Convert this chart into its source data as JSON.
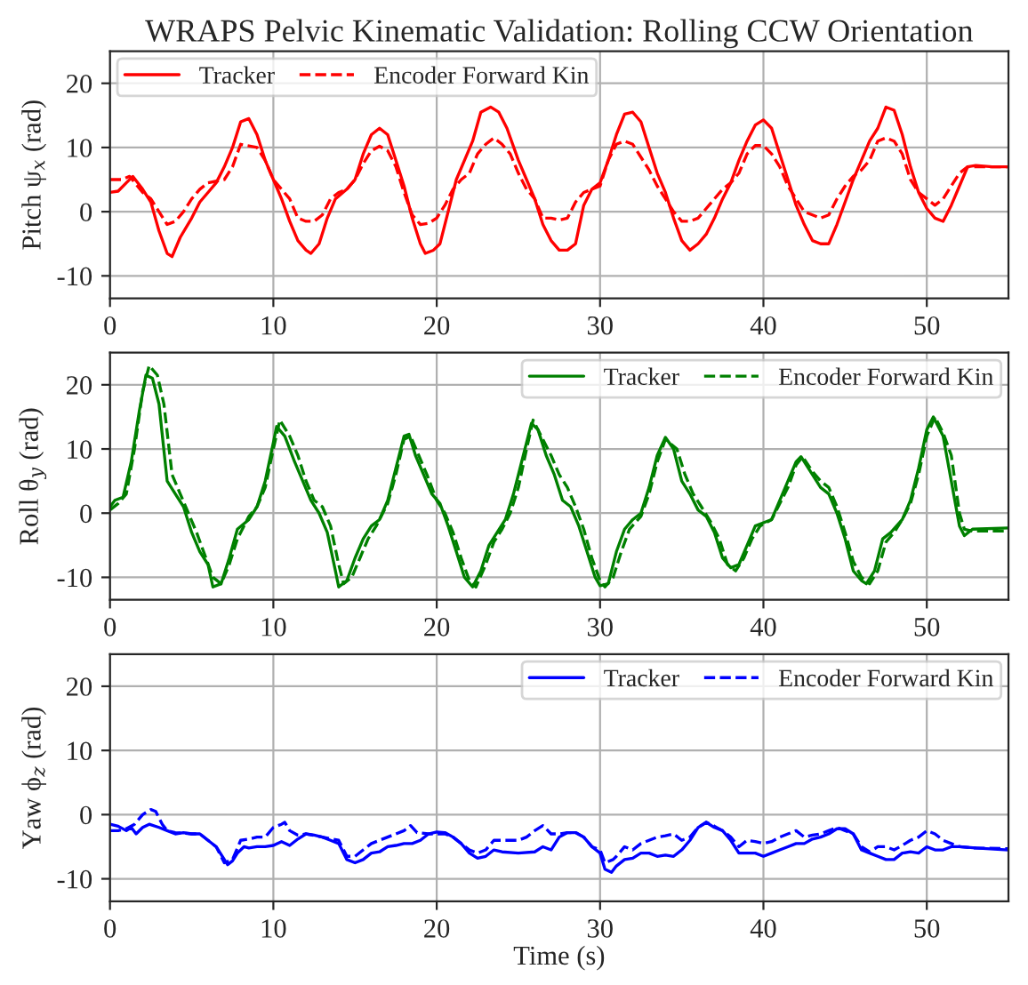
{
  "chart_data": [
    {
      "type": "line",
      "title": "WRAPS Pelvic Kinematic Validation: Rolling CCW Orientation",
      "ylabel": "Pitch ψ$_{x}$ (rad)",
      "xlim": [
        0,
        55
      ],
      "xticks": [
        0,
        10,
        20,
        30,
        40,
        50
      ],
      "ylim": [
        -13.5,
        25
      ],
      "yticks": [
        -10,
        0,
        10,
        20
      ],
      "grid": true,
      "legend": "top left",
      "marker": "none",
      "series": [
        {
          "name": "Tracker",
          "color": "#ff0000",
          "line_style": "solid",
          "x": [
            0,
            0.5,
            1,
            1.4,
            2,
            2.5,
            3,
            3.5,
            3.8,
            4.3,
            5,
            5.5,
            6,
            6.5,
            7,
            7.5,
            8,
            8.5,
            9,
            9.5,
            10,
            10.5,
            11,
            11.5,
            12,
            12.3,
            12.8,
            13.3,
            13.8,
            14.5,
            15,
            15.5,
            16,
            16.5,
            17,
            17.5,
            18,
            18.5,
            19,
            19.3,
            19.8,
            20.2,
            20.7,
            21.2,
            21.7,
            22.2,
            22.7,
            23.3,
            23.8,
            24.3,
            25,
            25.5,
            26,
            26.5,
            27,
            27.5,
            28,
            28.5,
            29,
            29.5,
            30,
            30.5,
            31,
            31.5,
            32,
            32.5,
            33,
            33.5,
            34,
            34.5,
            35,
            35.5,
            36,
            36.5,
            37,
            37.5,
            38,
            38.5,
            39,
            39.5,
            40,
            40.5,
            41,
            41.5,
            42,
            42.5,
            43,
            43.5,
            44,
            44.5,
            45,
            45.5,
            46,
            46.5,
            47,
            47.5,
            48,
            48.5,
            49,
            49.5,
            50,
            50.5,
            51,
            51.5,
            52,
            52.5,
            53,
            54,
            55
          ],
          "values": [
            3,
            3.2,
            4.5,
            5.5,
            3.5,
            1.5,
            -3,
            -6.5,
            -7,
            -4,
            -1,
            1.5,
            3,
            4.5,
            7,
            10,
            14,
            14.5,
            12,
            8,
            5,
            2,
            -1.5,
            -4.5,
            -6,
            -6.5,
            -5,
            -1,
            2,
            3.5,
            5,
            9,
            12,
            13,
            12,
            8,
            4,
            -1,
            -5,
            -6.5,
            -6,
            -5,
            0,
            5,
            8,
            11,
            15.5,
            16.3,
            15.5,
            13,
            8,
            5,
            2,
            -2,
            -4.5,
            -6,
            -6,
            -5,
            1,
            3.5,
            4.5,
            8,
            12,
            15.2,
            15.5,
            14,
            10,
            6,
            3,
            -1,
            -4.5,
            -6,
            -5,
            -3.5,
            -1,
            2,
            4.5,
            8,
            11,
            13.5,
            14.3,
            13,
            9,
            5,
            1,
            -2,
            -4.5,
            -5,
            -5,
            -2,
            1.5,
            5,
            8,
            11,
            13,
            16.3,
            15.8,
            12,
            7,
            3,
            0.5,
            -1,
            -1.5,
            1,
            4,
            7,
            7.2,
            7,
            7
          ]
        },
        {
          "name": "Encoder Forward Kin",
          "color": "#ff0000",
          "line_style": "dashed",
          "x": [
            0,
            0.7,
            1.2,
            2,
            2.5,
            3,
            3.5,
            4,
            4.5,
            5,
            5.5,
            6,
            7,
            7.5,
            8,
            9,
            9.5,
            10,
            10.5,
            11,
            11.5,
            12,
            12.5,
            13,
            13.5,
            14,
            14.5,
            15,
            15.5,
            16,
            16.5,
            17,
            17.5,
            18,
            18.5,
            19,
            19.5,
            20,
            20.5,
            21,
            21.5,
            22,
            22.5,
            23,
            23.5,
            24,
            24.5,
            25,
            25.5,
            26,
            26.5,
            27,
            27.5,
            28,
            28.5,
            29,
            29.5,
            30,
            30.5,
            31,
            31.5,
            32,
            32.5,
            33,
            33.5,
            34,
            34.5,
            35,
            35.5,
            36,
            36.5,
            37,
            37.5,
            38,
            38.5,
            39,
            39.5,
            40,
            40.5,
            41,
            41.5,
            42,
            42.5,
            43,
            43.5,
            44,
            44.5,
            45,
            45.5,
            46,
            46.5,
            47,
            47.5,
            48,
            48.5,
            49,
            49.5,
            50,
            50.5,
            51,
            51.5,
            52,
            52.5,
            55
          ],
          "values": [
            5,
            5,
            5.5,
            3,
            2,
            0,
            -2,
            -1.5,
            0,
            2,
            3.5,
            4.5,
            5,
            7,
            10.5,
            10,
            8,
            5,
            3.5,
            2,
            -1,
            -1.5,
            -1.5,
            -0.5,
            2,
            3,
            3.5,
            5,
            7.5,
            9.5,
            10.2,
            9.5,
            7,
            3,
            -0.5,
            -2,
            -1.8,
            -1,
            1,
            3.5,
            5,
            6,
            9,
            10.5,
            11.5,
            10.5,
            9,
            6,
            3.5,
            2,
            -1,
            -1,
            -1.3,
            -1,
            1.5,
            3,
            3.5,
            4,
            8,
            10.5,
            11,
            10.5,
            8.5,
            6.5,
            4,
            2,
            0,
            -1.5,
            -1.5,
            -1,
            0.5,
            2,
            3.5,
            4.5,
            6,
            9,
            10.3,
            10.3,
            9,
            7,
            4,
            2,
            0,
            -0.5,
            -1,
            -0.5,
            2,
            4,
            5.5,
            6.5,
            8,
            11,
            11.5,
            11,
            9,
            5,
            3,
            2,
            1,
            2,
            4,
            6,
            7,
            7
          ]
        }
      ]
    },
    {
      "type": "line",
      "ylabel": "Roll θ$_{y}$ (rad)",
      "xlim": [
        0,
        55
      ],
      "xticks": [
        0,
        10,
        20,
        30,
        40,
        50
      ],
      "ylim": [
        -13.5,
        25
      ],
      "yticks": [
        -10,
        0,
        10,
        20
      ],
      "grid": true,
      "legend": "top right",
      "marker": "none",
      "series": [
        {
          "name": "Tracker",
          "color": "#008000",
          "line_style": "solid",
          "x": [
            0,
            0.3,
            0.8,
            1.3,
            1.8,
            2.2,
            2.6,
            3,
            3.5,
            4,
            4.5,
            5,
            5.5,
            6,
            6.3,
            6.8,
            7.3,
            7.8,
            8.5,
            9,
            9.5,
            10,
            10.2,
            10.7,
            11.3,
            11.8,
            12.3,
            12.8,
            13.3,
            13.8,
            14,
            14.5,
            15,
            15.5,
            16,
            16.5,
            17,
            17.5,
            18,
            18.3,
            18.7,
            19.2,
            19.7,
            20.2,
            20.7,
            21.2,
            21.7,
            22.2,
            22.7,
            23.2,
            23.7,
            24.2,
            24.7,
            25.3,
            25.8,
            26.2,
            26.7,
            27.2,
            27.7,
            28.2,
            28.7,
            29.2,
            29.7,
            30,
            30.5,
            31,
            31.5,
            32,
            32.5,
            33,
            33.5,
            34,
            34.5,
            35,
            35.5,
            36,
            36.5,
            37,
            37.5,
            38,
            38.5,
            39,
            39.5,
            40,
            40.5,
            41,
            41.5,
            42,
            42.3,
            43,
            43.5,
            44,
            44.5,
            45,
            45.5,
            46,
            46.3,
            46.8,
            47.3,
            47.8,
            48.5,
            49,
            49.5,
            50,
            50.4,
            51,
            51.5,
            52,
            52.3,
            52.8,
            55
          ],
          "values": [
            1,
            2,
            2.5,
            8,
            16,
            21.5,
            21,
            17,
            5,
            3,
            1,
            -3,
            -6,
            -8,
            -11.5,
            -11,
            -7,
            -2.5,
            -1,
            1,
            5,
            11,
            13.5,
            12,
            8,
            5,
            2,
            0,
            -3,
            -9,
            -11.5,
            -10.5,
            -7,
            -4,
            -2,
            -1,
            2,
            7,
            12,
            12.3,
            9,
            6,
            3,
            1.5,
            -2,
            -6,
            -10,
            -11.5,
            -9,
            -5,
            -3,
            -1,
            3,
            9,
            14,
            13,
            9,
            6,
            2,
            1,
            -2,
            -6,
            -10,
            -11.3,
            -11,
            -6,
            -2.5,
            -1,
            0,
            4,
            9,
            11.8,
            10,
            5,
            3,
            0.5,
            -0.5,
            -3,
            -7,
            -8.5,
            -8,
            -5,
            -2,
            -1.5,
            -1,
            2,
            5,
            8,
            8.8,
            6,
            4,
            3,
            0,
            -4,
            -9,
            -10.5,
            -11,
            -9,
            -4,
            -3,
            -1,
            2,
            7,
            13,
            15,
            12,
            5,
            -2,
            -3.5,
            -2.5,
            -2.3
          ]
        },
        {
          "name": "Encoder Forward Kin",
          "color": "#008000",
          "line_style": "dashed",
          "x": [
            0,
            0.5,
            1,
            1.5,
            2,
            2.4,
            2.9,
            3.3,
            3.8,
            4.3,
            4.8,
            5.3,
            5.8,
            6.3,
            6.8,
            7.3,
            7.8,
            8.5,
            9,
            9.5,
            10,
            10.4,
            11,
            11.5,
            12,
            12.5,
            13,
            13.5,
            14,
            14.3,
            14.8,
            15.3,
            15.8,
            16.3,
            17,
            17.5,
            18,
            18.4,
            18.9,
            19.4,
            20,
            20.5,
            21,
            21.5,
            22,
            22.4,
            23,
            23.5,
            24,
            24.5,
            25,
            25.5,
            25.9,
            26.4,
            27,
            27.5,
            28,
            28.5,
            29,
            29.5,
            30,
            30.3,
            30.8,
            31.3,
            31.8,
            32.5,
            33,
            33.5,
            34,
            34.7,
            35.2,
            35.7,
            36.2,
            36.8,
            37.3,
            37.8,
            38.3,
            38.8,
            39.3,
            39.8,
            40.5,
            41,
            41.5,
            42,
            42.4,
            43,
            43.5,
            44,
            44.5,
            45,
            45.5,
            46,
            46.5,
            47,
            47.5,
            48,
            48.5,
            49,
            49.5,
            50,
            50.5,
            51,
            51.5,
            52,
            52.3,
            52.8,
            55
          ],
          "values": [
            0.5,
            1.5,
            3,
            10,
            19,
            23,
            21.5,
            17,
            6,
            3,
            0,
            -3,
            -6.5,
            -10,
            -11,
            -8,
            -4,
            -0.5,
            1,
            4,
            10,
            14.5,
            12,
            9,
            5,
            2,
            1,
            -2,
            -8,
            -11,
            -10,
            -7,
            -4,
            -2,
            1.5,
            6,
            11.5,
            12,
            9,
            6,
            2,
            0,
            -3,
            -7,
            -10.5,
            -11.5,
            -8,
            -4.5,
            -2.5,
            0,
            4,
            10,
            14.5,
            12,
            9,
            6,
            4,
            1,
            -2.5,
            -7,
            -10.5,
            -11.5,
            -10,
            -6,
            -2.5,
            -0.5,
            3,
            8,
            11.5,
            10,
            6,
            3,
            1,
            -1.5,
            -4,
            -8,
            -9,
            -7,
            -4,
            -2,
            -1,
            1.5,
            4,
            7.5,
            8.8,
            6.5,
            5,
            4,
            1,
            -3,
            -7.5,
            -10,
            -11,
            -9,
            -4.5,
            -3,
            -1,
            1.5,
            6,
            12,
            15,
            12.5,
            9,
            0,
            -2.5,
            -2.8,
            -2.8
          ]
        }
      ]
    },
    {
      "type": "line",
      "ylabel": "Yaw ϕ$_{z}$ (rad)",
      "xlabel": "Time (s)",
      "xlim": [
        0,
        55
      ],
      "xticks": [
        0,
        10,
        20,
        30,
        40,
        50
      ],
      "ylim": [
        -13.5,
        25
      ],
      "yticks": [
        -10,
        0,
        10,
        20
      ],
      "grid": true,
      "legend": "top right",
      "marker": "none",
      "series": [
        {
          "name": "Tracker",
          "color": "#0000ff",
          "line_style": "solid",
          "x": [
            0,
            0.5,
            1,
            1.3,
            1.6,
            2,
            2.4,
            3,
            3.5,
            4,
            4.5,
            5,
            5.5,
            6,
            6.5,
            7,
            7.2,
            7.5,
            7.8,
            8.2,
            8.5,
            9,
            9.5,
            10,
            10.5,
            11,
            11.5,
            12,
            12.5,
            13,
            13.5,
            14,
            14.5,
            15,
            15.5,
            16,
            16.5,
            17,
            17.5,
            18,
            18.5,
            19,
            19.5,
            20,
            20.5,
            21,
            21.5,
            22,
            22.5,
            23,
            23.5,
            24,
            25,
            26,
            26.5,
            27,
            27.5,
            28,
            28.5,
            29,
            29.5,
            30,
            30.3,
            30.7,
            31,
            31.5,
            32,
            32.5,
            33,
            33.5,
            34,
            34.5,
            35,
            35.5,
            36,
            36.5,
            37,
            37.5,
            38,
            38.5,
            39,
            39.5,
            40,
            40.5,
            41,
            41.5,
            42,
            42.5,
            43,
            43.5,
            44,
            44.5,
            45,
            45.5,
            46,
            46.5,
            47,
            47.5,
            48,
            48.5,
            49,
            49.5,
            50,
            50.5,
            51,
            51.5,
            52,
            53,
            55
          ],
          "values": [
            -1.5,
            -1.8,
            -2.5,
            -2,
            -3,
            -2,
            -1.5,
            -2,
            -2.5,
            -3,
            -2.8,
            -3,
            -3,
            -4,
            -5,
            -7,
            -7.8,
            -7.2,
            -6,
            -5,
            -5.2,
            -5,
            -5,
            -4.8,
            -4.2,
            -4.8,
            -3.8,
            -3,
            -3.2,
            -3.5,
            -4,
            -4.5,
            -7,
            -7.5,
            -7,
            -6,
            -5.8,
            -5,
            -4.8,
            -4.5,
            -4.5,
            -4,
            -3,
            -2.7,
            -2.8,
            -3.5,
            -4.5,
            -6,
            -6.8,
            -6.5,
            -5.5,
            -5.8,
            -6,
            -5.8,
            -5,
            -5.5,
            -3.5,
            -2.8,
            -2.8,
            -3.5,
            -5,
            -6,
            -8.5,
            -9,
            -8,
            -7,
            -6.8,
            -6,
            -6,
            -6.5,
            -6.3,
            -6.5,
            -5.5,
            -4,
            -2,
            -1.2,
            -2,
            -2.5,
            -4,
            -6,
            -6,
            -6,
            -6.5,
            -6,
            -5.5,
            -5,
            -4.5,
            -4.5,
            -3.8,
            -3.5,
            -3,
            -2.2,
            -2.2,
            -3,
            -5.5,
            -6,
            -6.5,
            -7,
            -7,
            -6,
            -5.8,
            -6,
            -5,
            -5.5,
            -5.5,
            -5,
            -5,
            -5.2,
            -5.5
          ]
        },
        {
          "name": "Encoder Forward Kin",
          "color": "#0000ff",
          "line_style": "dashed",
          "x": [
            0,
            0.5,
            1,
            1.5,
            2,
            2.5,
            2.8,
            3.2,
            3.5,
            4,
            5,
            5.5,
            6,
            6.5,
            7,
            7.5,
            8,
            8.5,
            9,
            9.5,
            10,
            10.5,
            10.7,
            11,
            11.5,
            12,
            13,
            14,
            14.5,
            15,
            15.5,
            16,
            16.5,
            17,
            17.5,
            18,
            18.4,
            18.8,
            19.5,
            20,
            20.5,
            21,
            21.5,
            22,
            22.5,
            23,
            23.5,
            24,
            25,
            25.5,
            26,
            26.5,
            27,
            27.5,
            28,
            28.5,
            29,
            29.5,
            30,
            30.3,
            30.8,
            31,
            31.5,
            32,
            32.5,
            33,
            33.5,
            34,
            34.5,
            35,
            35.5,
            36,
            36.5,
            37,
            37.5,
            38,
            38.5,
            39,
            39.5,
            40,
            40.5,
            41,
            41.5,
            42,
            42.5,
            43,
            43.5,
            44,
            44.5,
            45,
            45.5,
            46,
            46.5,
            47,
            47.5,
            48,
            48.5,
            49,
            49.5,
            50,
            50.5,
            51,
            51.5,
            52,
            53,
            55
          ],
          "values": [
            -2.5,
            -2.5,
            -2.2,
            -1.5,
            0,
            0.8,
            0.5,
            -1.5,
            -2.5,
            -2.8,
            -3,
            -3,
            -4,
            -5,
            -7.5,
            -7,
            -4,
            -3.8,
            -3.5,
            -3.5,
            -2,
            -1.5,
            -1.2,
            -2.5,
            -3.2,
            -3,
            -3.5,
            -4,
            -6.5,
            -6.5,
            -5.5,
            -4.5,
            -4,
            -3.5,
            -3,
            -2.5,
            -1.7,
            -2.8,
            -3,
            -3,
            -3,
            -3.5,
            -4.5,
            -5.5,
            -6,
            -5.5,
            -4,
            -4,
            -4,
            -3.5,
            -2.5,
            -1.7,
            -3,
            -3,
            -2.8,
            -2.8,
            -3.5,
            -5,
            -5.5,
            -7.5,
            -7,
            -6.5,
            -5,
            -5.5,
            -4.5,
            -4,
            -3.5,
            -3.3,
            -3,
            -4,
            -3.5,
            -2,
            -1.2,
            -1.8,
            -2.5,
            -3.5,
            -5,
            -4,
            -4.2,
            -4.5,
            -4.2,
            -3.5,
            -3,
            -2.5,
            -3.5,
            -3.2,
            -3,
            -2.5,
            -2,
            -2.5,
            -3,
            -5,
            -5.8,
            -5,
            -5,
            -5.5,
            -4.8,
            -4,
            -3.5,
            -2.5,
            -3,
            -4,
            -4.5,
            -5,
            -5.2,
            -5.3
          ]
        }
      ]
    }
  ]
}
